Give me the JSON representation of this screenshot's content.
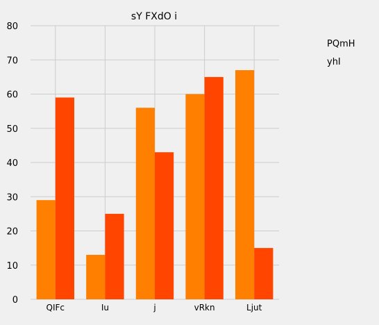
{
  "chart_data": {
    "type": "bar",
    "title": "sY FXdO i",
    "xlabel": "",
    "ylabel": "",
    "categories": [
      "QIFc",
      "Iu",
      "j",
      "vRkn",
      "Ljut"
    ],
    "series": [
      {
        "name": "PQmH",
        "color": "#ff7f00",
        "values": [
          29,
          13,
          56,
          60,
          67
        ]
      },
      {
        "name": "yhI",
        "color": "#ff4500",
        "values": [
          59,
          25,
          43,
          65,
          15
        ]
      }
    ],
    "ylim": [
      0,
      80
    ],
    "yticks": [
      0,
      10,
      20,
      30,
      40,
      50,
      60,
      70,
      80
    ],
    "grid": true,
    "legend_position": "top-right",
    "colors": {
      "background": "#f0f0f0",
      "grid": "#cccccc",
      "text": "#000000"
    }
  }
}
